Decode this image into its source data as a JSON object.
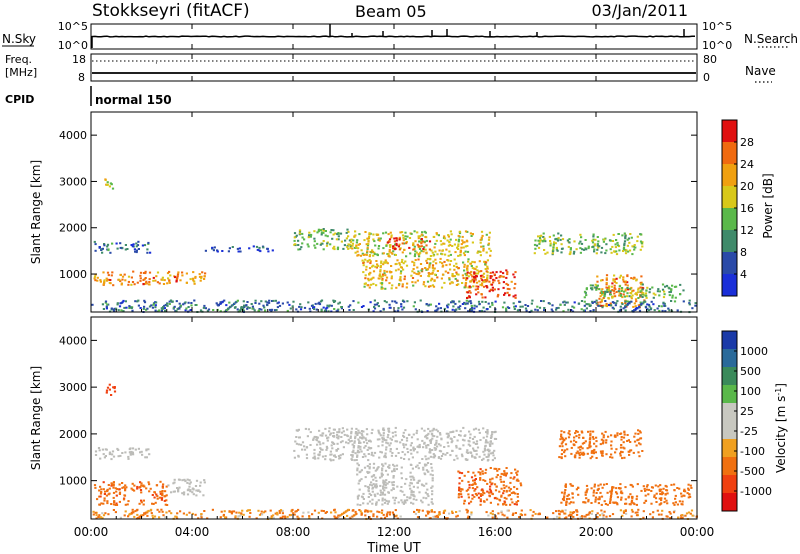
{
  "header": {
    "title": "Stokkseyri (fitACF)",
    "beam": "Beam 05",
    "date": "03/Jan/2011"
  },
  "meta_panels": {
    "nsky": {
      "label": "N.Sky",
      "ticks": [
        "10^5",
        "10^0"
      ]
    },
    "nsearch": {
      "label": "N.Search",
      "ticks": [
        "10^5",
        "10^0"
      ]
    },
    "freq": {
      "label_line1": "Freq.",
      "label_line2": "[MHz]",
      "ticks": [
        "18",
        "8"
      ]
    },
    "nave": {
      "label": "Nave",
      "ticks": [
        "80",
        "0"
      ]
    },
    "cpid": {
      "label": "CPID",
      "value": "normal 150"
    }
  },
  "colors": {
    "power_scale": [
      "#1a2fd8",
      "#2a4aa8",
      "#3f8a6a",
      "#5ab84a",
      "#d8c81a",
      "#f0a010",
      "#f06a10",
      "#e01010"
    ],
    "velocity_scale": [
      "#1a3aa8",
      "#2a6a9a",
      "#3a8a5a",
      "#5ab84a",
      "#c8c8c0",
      "#c8c8c0",
      "#f0a020",
      "#f07010",
      "#f04010",
      "#e01010"
    ],
    "ground_scatter": "#bcbcb8"
  },
  "chart_data": [
    {
      "type": "heatmap",
      "title": "Power",
      "xlabel": "",
      "ylabel": "Slant Range [km]",
      "x_ticks": [
        "00:00",
        "04:00",
        "08:00",
        "12:00",
        "16:00",
        "20:00",
        "00:00"
      ],
      "y_ticks": [
        "1000",
        "2000",
        "3000",
        "4000"
      ],
      "ylim": [
        180,
        4500
      ],
      "xlim_hours": [
        0,
        24
      ],
      "colorbar": {
        "label": "Power [dB]",
        "ticks": [
          "4",
          "8",
          "12",
          "16",
          "20",
          "24",
          "28"
        ],
        "range": [
          0,
          32
        ]
      },
      "regions": [
        {
          "t": [
            0.5,
            1.0
          ],
          "r": [
            2850,
            3080
          ],
          "p": 16
        },
        {
          "t": [
            0.1,
            4.5
          ],
          "r": [
            780,
            1080
          ],
          "p": 24
        },
        {
          "t": [
            0.1,
            2.3
          ],
          "r": [
            1480,
            1720
          ],
          "p": 8
        },
        {
          "t": [
            4.5,
            7.2
          ],
          "r": [
            1500,
            1620
          ],
          "p": 6
        },
        {
          "t": [
            8.0,
            10.3
          ],
          "r": [
            1550,
            2000
          ],
          "p": 14
        },
        {
          "t": [
            10.3,
            15.8
          ],
          "r": [
            1400,
            1950
          ],
          "p": 18
        },
        {
          "t": [
            11.7,
            13.4
          ],
          "r": [
            1550,
            1800
          ],
          "p": 28
        },
        {
          "t": [
            10.7,
            15.8
          ],
          "r": [
            700,
            1350
          ],
          "p": 20
        },
        {
          "t": [
            14.8,
            16.8
          ],
          "r": [
            500,
            1100
          ],
          "p": 28
        },
        {
          "t": [
            17.5,
            21.8
          ],
          "r": [
            1450,
            1900
          ],
          "p": 14
        },
        {
          "t": [
            20.0,
            22.0
          ],
          "r": [
            300,
            1000
          ],
          "p": 24
        },
        {
          "t": [
            19.5,
            23.5
          ],
          "r": [
            500,
            800
          ],
          "p": 14
        },
        {
          "t": [
            0.0,
            24.0
          ],
          "r": [
            200,
            450
          ],
          "p": 8
        }
      ]
    },
    {
      "type": "heatmap",
      "title": "Velocity",
      "xlabel": "Time UT",
      "ylabel": "Slant Range [km]",
      "x_ticks": [
        "00:00",
        "04:00",
        "08:00",
        "12:00",
        "16:00",
        "20:00",
        "00:00"
      ],
      "y_ticks": [
        "1000",
        "2000",
        "3000",
        "4000"
      ],
      "ylim": [
        180,
        4500
      ],
      "xlim_hours": [
        0,
        24
      ],
      "colorbar": {
        "label": "Velocity [m s^-1]",
        "ticks": [
          "1000",
          "500",
          "100",
          "25",
          "-25",
          "-100",
          "-500",
          "-1000"
        ]
      },
      "regions": [
        {
          "t": [
            0.5,
            1.0
          ],
          "r": [
            2850,
            3080
          ],
          "v": -700,
          "gs": false
        },
        {
          "t": [
            0.1,
            3.0
          ],
          "r": [
            500,
            1000
          ],
          "v": -400,
          "gs": false
        },
        {
          "t": [
            3.0,
            4.5
          ],
          "r": [
            700,
            1050
          ],
          "v": 0,
          "gs": true
        },
        {
          "t": [
            0.1,
            2.3
          ],
          "r": [
            1480,
            1720
          ],
          "v": 0,
          "gs": true
        },
        {
          "t": [
            8.0,
            16.0
          ],
          "r": [
            1450,
            2150
          ],
          "v": 0,
          "gs": true
        },
        {
          "t": [
            10.5,
            13.5
          ],
          "r": [
            500,
            1400
          ],
          "v": 0,
          "gs": true
        },
        {
          "t": [
            14.5,
            17.0
          ],
          "r": [
            500,
            1300
          ],
          "v": -400,
          "gs": false
        },
        {
          "t": [
            18.5,
            21.8
          ],
          "r": [
            1500,
            2100
          ],
          "v": -300,
          "gs": false
        },
        {
          "t": [
            18.5,
            23.8
          ],
          "r": [
            500,
            950
          ],
          "v": -250,
          "gs": false
        },
        {
          "t": [
            0.0,
            24.0
          ],
          "r": [
            200,
            400
          ],
          "v": -150,
          "gs": false
        }
      ]
    }
  ]
}
